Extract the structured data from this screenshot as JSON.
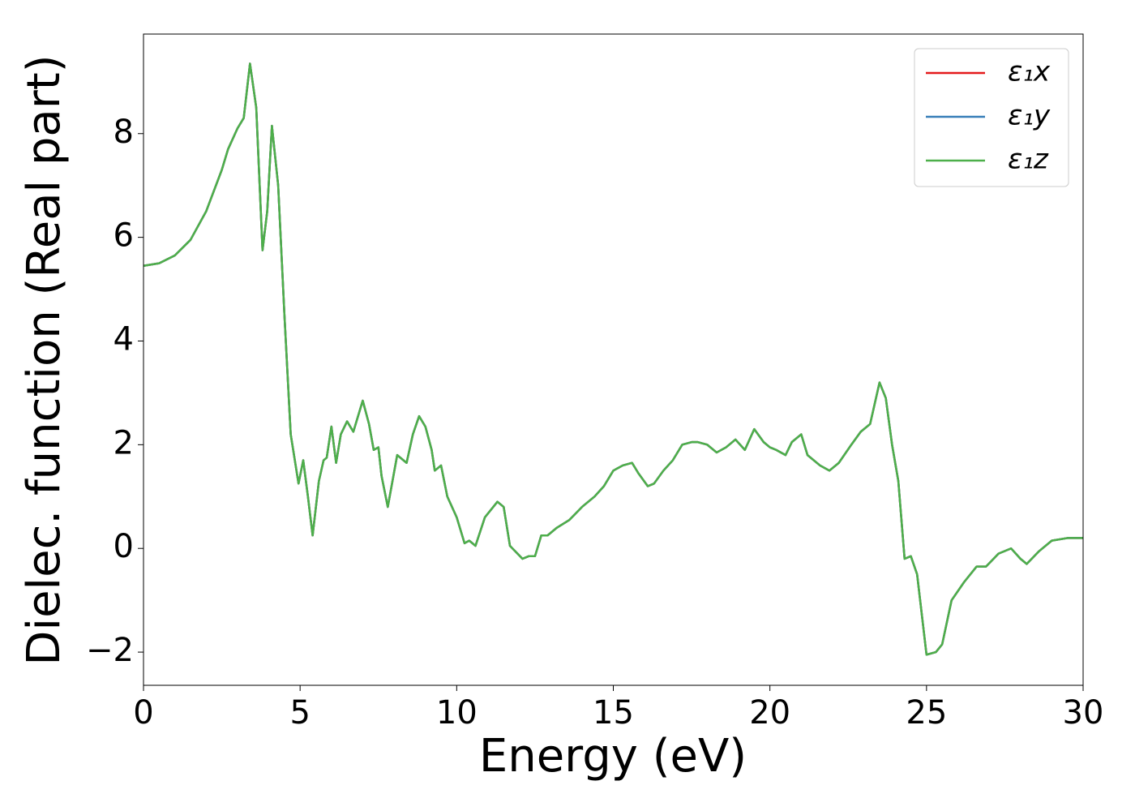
{
  "chart_data": {
    "type": "line",
    "xlabel": "Energy (eV)",
    "ylabel": "Dielec. function (Real part)",
    "x": [
      0,
      0.5,
      1.0,
      1.5,
      2.0,
      2.5,
      2.7,
      3.0,
      3.2,
      3.4,
      3.6,
      3.8,
      3.95,
      4.1,
      4.3,
      4.5,
      4.7,
      4.95,
      5.1,
      5.25,
      5.4,
      5.6,
      5.75,
      5.85,
      6.0,
      6.15,
      6.3,
      6.5,
      6.7,
      7.0,
      7.2,
      7.35,
      7.5,
      7.6,
      7.8,
      8.1,
      8.4,
      8.6,
      8.8,
      9.0,
      9.2,
      9.3,
      9.5,
      9.7,
      10.0,
      10.25,
      10.4,
      10.6,
      10.9,
      11.3,
      11.5,
      11.7,
      12.1,
      12.3,
      12.5,
      12.7,
      12.9,
      13.2,
      13.6,
      14.0,
      14.4,
      14.7,
      15.0,
      15.3,
      15.6,
      15.8,
      16.1,
      16.3,
      16.6,
      16.9,
      17.2,
      17.5,
      17.7,
      18.0,
      18.3,
      18.6,
      18.9,
      19.2,
      19.5,
      19.8,
      20.0,
      20.2,
      20.5,
      20.7,
      21.0,
      21.2,
      21.6,
      21.9,
      22.2,
      22.6,
      22.9,
      23.2,
      23.5,
      23.7,
      23.9,
      24.1,
      24.3,
      24.5,
      24.7,
      25.0,
      25.3,
      25.5,
      25.8,
      26.2,
      26.6,
      26.9,
      27.3,
      27.7,
      28.0,
      28.2,
      28.6,
      29.0,
      29.5,
      30.0
    ],
    "series": [
      {
        "name": "ε₁x",
        "color": "#e41a1c",
        "values": [
          5.45,
          5.5,
          5.65,
          5.95,
          6.5,
          7.3,
          7.7,
          8.1,
          8.3,
          9.35,
          8.5,
          5.75,
          6.5,
          8.15,
          7.0,
          4.5,
          2.2,
          1.25,
          1.7,
          1.0,
          0.25,
          1.3,
          1.7,
          1.75,
          2.35,
          1.65,
          2.2,
          2.45,
          2.25,
          2.85,
          2.4,
          1.9,
          1.95,
          1.4,
          0.8,
          1.8,
          1.65,
          2.2,
          2.55,
          2.35,
          1.9,
          1.5,
          1.6,
          1.0,
          0.6,
          0.1,
          0.15,
          0.05,
          0.6,
          0.9,
          0.8,
          0.05,
          -0.2,
          -0.15,
          -0.15,
          0.25,
          0.25,
          0.4,
          0.55,
          0.8,
          1.0,
          1.2,
          1.5,
          1.6,
          1.65,
          1.45,
          1.2,
          1.25,
          1.5,
          1.7,
          2.0,
          2.05,
          2.05,
          2.0,
          1.85,
          1.95,
          2.1,
          1.9,
          2.3,
          2.05,
          1.95,
          1.9,
          1.8,
          2.05,
          2.2,
          1.8,
          1.6,
          1.5,
          1.65,
          2.0,
          2.25,
          2.4,
          3.2,
          2.9,
          2.0,
          1.3,
          -0.2,
          -0.15,
          -0.5,
          -2.05,
          -2.0,
          -1.85,
          -1.0,
          -0.65,
          -0.35,
          -0.35,
          -0.1,
          0.0,
          -0.2,
          -0.3,
          -0.05,
          0.15,
          0.2,
          0.2
        ]
      },
      {
        "name": "ε₁y",
        "color": "#377eb8",
        "values": [
          5.45,
          5.5,
          5.65,
          5.95,
          6.5,
          7.3,
          7.7,
          8.1,
          8.3,
          9.35,
          8.5,
          5.75,
          6.5,
          8.15,
          7.0,
          4.5,
          2.2,
          1.25,
          1.7,
          1.0,
          0.25,
          1.3,
          1.7,
          1.75,
          2.35,
          1.65,
          2.2,
          2.45,
          2.25,
          2.85,
          2.4,
          1.9,
          1.95,
          1.4,
          0.8,
          1.8,
          1.65,
          2.2,
          2.55,
          2.35,
          1.9,
          1.5,
          1.6,
          1.0,
          0.6,
          0.1,
          0.15,
          0.05,
          0.6,
          0.9,
          0.8,
          0.05,
          -0.2,
          -0.15,
          -0.15,
          0.25,
          0.25,
          0.4,
          0.55,
          0.8,
          1.0,
          1.2,
          1.5,
          1.6,
          1.65,
          1.45,
          1.2,
          1.25,
          1.5,
          1.7,
          2.0,
          2.05,
          2.05,
          2.0,
          1.85,
          1.95,
          2.1,
          1.9,
          2.3,
          2.05,
          1.95,
          1.9,
          1.8,
          2.05,
          2.2,
          1.8,
          1.6,
          1.5,
          1.65,
          2.0,
          2.25,
          2.4,
          3.2,
          2.9,
          2.0,
          1.3,
          -0.2,
          -0.15,
          -0.5,
          -2.05,
          -2.0,
          -1.85,
          -1.0,
          -0.65,
          -0.35,
          -0.35,
          -0.1,
          0.0,
          -0.2,
          -0.3,
          -0.05,
          0.15,
          0.2,
          0.2
        ]
      },
      {
        "name": "ε₁z",
        "color": "#4daf4a",
        "values": [
          5.45,
          5.5,
          5.65,
          5.95,
          6.5,
          7.3,
          7.7,
          8.1,
          8.3,
          9.35,
          8.5,
          5.75,
          6.5,
          8.15,
          7.0,
          4.5,
          2.2,
          1.25,
          1.7,
          1.0,
          0.25,
          1.3,
          1.7,
          1.75,
          2.35,
          1.65,
          2.2,
          2.45,
          2.25,
          2.85,
          2.4,
          1.9,
          1.95,
          1.4,
          0.8,
          1.8,
          1.65,
          2.2,
          2.55,
          2.35,
          1.9,
          1.5,
          1.6,
          1.0,
          0.6,
          0.1,
          0.15,
          0.05,
          0.6,
          0.9,
          0.8,
          0.05,
          -0.2,
          -0.15,
          -0.15,
          0.25,
          0.25,
          0.4,
          0.55,
          0.8,
          1.0,
          1.2,
          1.5,
          1.6,
          1.65,
          1.45,
          1.2,
          1.25,
          1.5,
          1.7,
          2.0,
          2.05,
          2.05,
          2.0,
          1.85,
          1.95,
          2.1,
          1.9,
          2.3,
          2.05,
          1.95,
          1.9,
          1.8,
          2.05,
          2.2,
          1.8,
          1.6,
          1.5,
          1.65,
          2.0,
          2.25,
          2.4,
          3.2,
          2.9,
          2.0,
          1.3,
          -0.2,
          -0.15,
          -0.5,
          -2.05,
          -2.0,
          -1.85,
          -1.0,
          -0.65,
          -0.35,
          -0.35,
          -0.1,
          0.0,
          -0.2,
          -0.3,
          -0.05,
          0.15,
          0.2,
          0.2
        ]
      }
    ],
    "xlim": [
      0,
      30
    ],
    "xticks": [
      0,
      5,
      10,
      15,
      20,
      25,
      30
    ],
    "ylim": [
      -2.64,
      9.92
    ],
    "yticks": [
      {
        "value": -2,
        "label": "−2"
      },
      0,
      2,
      4,
      6,
      8
    ],
    "grid": false,
    "legend": "upper right"
  }
}
